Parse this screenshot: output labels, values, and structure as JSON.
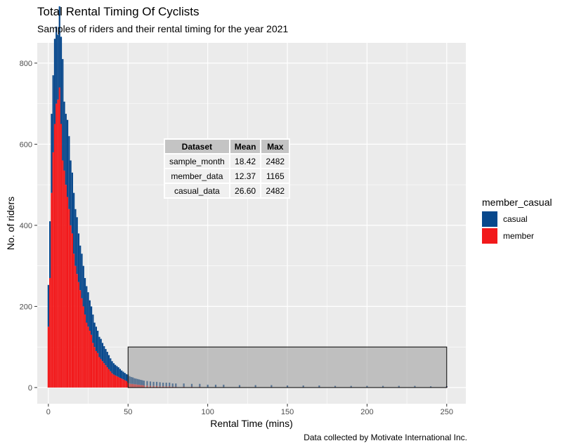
{
  "chart_data": {
    "type": "bar",
    "stacked": true,
    "title": "Total Rental Timing Of Cyclists",
    "subtitle": "Samples of riders and their rental timing for the year 2021",
    "caption": "Data collected by Motivate International Inc.",
    "xlabel": "Rental Time (mins)",
    "ylabel": "No. of riders",
    "xlim": [
      -7,
      262
    ],
    "ylim": [
      -40,
      850
    ],
    "x_ticks": [
      "0",
      "50",
      "100",
      "150",
      "200",
      "250"
    ],
    "y_ticks": [
      "0",
      "200",
      "400",
      "600",
      "800"
    ],
    "grid": true,
    "legend_position": "right",
    "legend_title": "member_casual",
    "series": [
      {
        "name": "casual",
        "color": "#08488c",
        "x": [
          0,
          1,
          2,
          3,
          4,
          5,
          6,
          7,
          8,
          9,
          10,
          11,
          12,
          13,
          14,
          15,
          16,
          17,
          18,
          19,
          20,
          21,
          22,
          23,
          24,
          25,
          26,
          27,
          28,
          29,
          30,
          31,
          32,
          33,
          34,
          35,
          36,
          37,
          38,
          39,
          40,
          41,
          42,
          43,
          44,
          45,
          46,
          47,
          48,
          49,
          50,
          51,
          52,
          53,
          54,
          55,
          56,
          57,
          58,
          59,
          60,
          62,
          64,
          66,
          68,
          70,
          72,
          74,
          76,
          78,
          80,
          85,
          90,
          95,
          100,
          105,
          110,
          120,
          130,
          140,
          150,
          160,
          170,
          180,
          190,
          200,
          210,
          220,
          230,
          240,
          250
        ],
        "values": [
          103,
          140,
          195,
          190,
          210,
          190,
          160,
          200,
          215,
          250,
          170,
          175,
          190,
          180,
          160,
          150,
          150,
          140,
          140,
          120,
          110,
          110,
          100,
          90,
          90,
          85,
          75,
          70,
          70,
          60,
          60,
          55,
          50,
          50,
          45,
          42,
          40,
          38,
          35,
          32,
          30,
          28,
          26,
          25,
          24,
          22,
          20,
          19,
          18,
          17,
          20,
          18,
          17,
          16,
          15,
          14,
          14,
          13,
          13,
          12,
          12,
          11,
          11,
          10,
          10,
          10,
          9,
          9,
          9,
          8,
          8,
          8,
          7,
          7,
          6,
          6,
          6,
          5,
          5,
          5,
          4,
          4,
          4,
          3,
          3,
          3,
          3,
          3,
          3,
          2,
          2
        ]
      },
      {
        "name": "member",
        "color": "#f2191b",
        "x": [
          0,
          1,
          2,
          3,
          4,
          5,
          6,
          7,
          8,
          9,
          10,
          11,
          12,
          13,
          14,
          15,
          16,
          17,
          18,
          19,
          20,
          21,
          22,
          23,
          24,
          25,
          26,
          27,
          28,
          29,
          30,
          31,
          32,
          33,
          34,
          35,
          36,
          37,
          38,
          39,
          40,
          41,
          42,
          43,
          44,
          45,
          46,
          47,
          48,
          49,
          50,
          51,
          52,
          53,
          54,
          55,
          56,
          57,
          58,
          59,
          60,
          62,
          64,
          66,
          68,
          70,
          72,
          74,
          76,
          78,
          80,
          85,
          90,
          95,
          100,
          105,
          110,
          120,
          130,
          140,
          150,
          160,
          170,
          180,
          190,
          200,
          210,
          220,
          230,
          240,
          250
        ],
        "values": [
          150,
          270,
          480,
          580,
          650,
          700,
          710,
          740,
          650,
          560,
          535,
          500,
          470,
          440,
          400,
          380,
          330,
          300,
          280,
          260,
          240,
          220,
          200,
          180,
          160,
          150,
          140,
          130,
          110,
          100,
          90,
          85,
          75,
          70,
          65,
          60,
          55,
          50,
          45,
          40,
          35,
          32,
          30,
          28,
          26,
          24,
          22,
          20,
          18,
          16,
          12,
          10,
          9,
          9,
          8,
          8,
          7,
          7,
          6,
          6,
          5,
          5,
          4,
          4,
          4,
          3,
          3,
          3,
          3,
          2,
          2,
          2,
          2,
          2,
          1,
          1,
          1,
          1,
          1,
          1,
          1,
          1,
          1,
          1,
          1,
          1,
          1,
          1,
          1,
          1,
          1
        ]
      }
    ],
    "annotation_rect": {
      "x": [
        50,
        250
      ],
      "y": [
        0,
        100
      ]
    },
    "table": {
      "columns": [
        "Dataset",
        "Mean",
        "Max"
      ],
      "rows": [
        [
          "sample_month",
          "18.42",
          "2482"
        ],
        [
          "member_data",
          "12.37",
          "1165"
        ],
        [
          "casual_data",
          "26.60",
          "2482"
        ]
      ]
    }
  }
}
